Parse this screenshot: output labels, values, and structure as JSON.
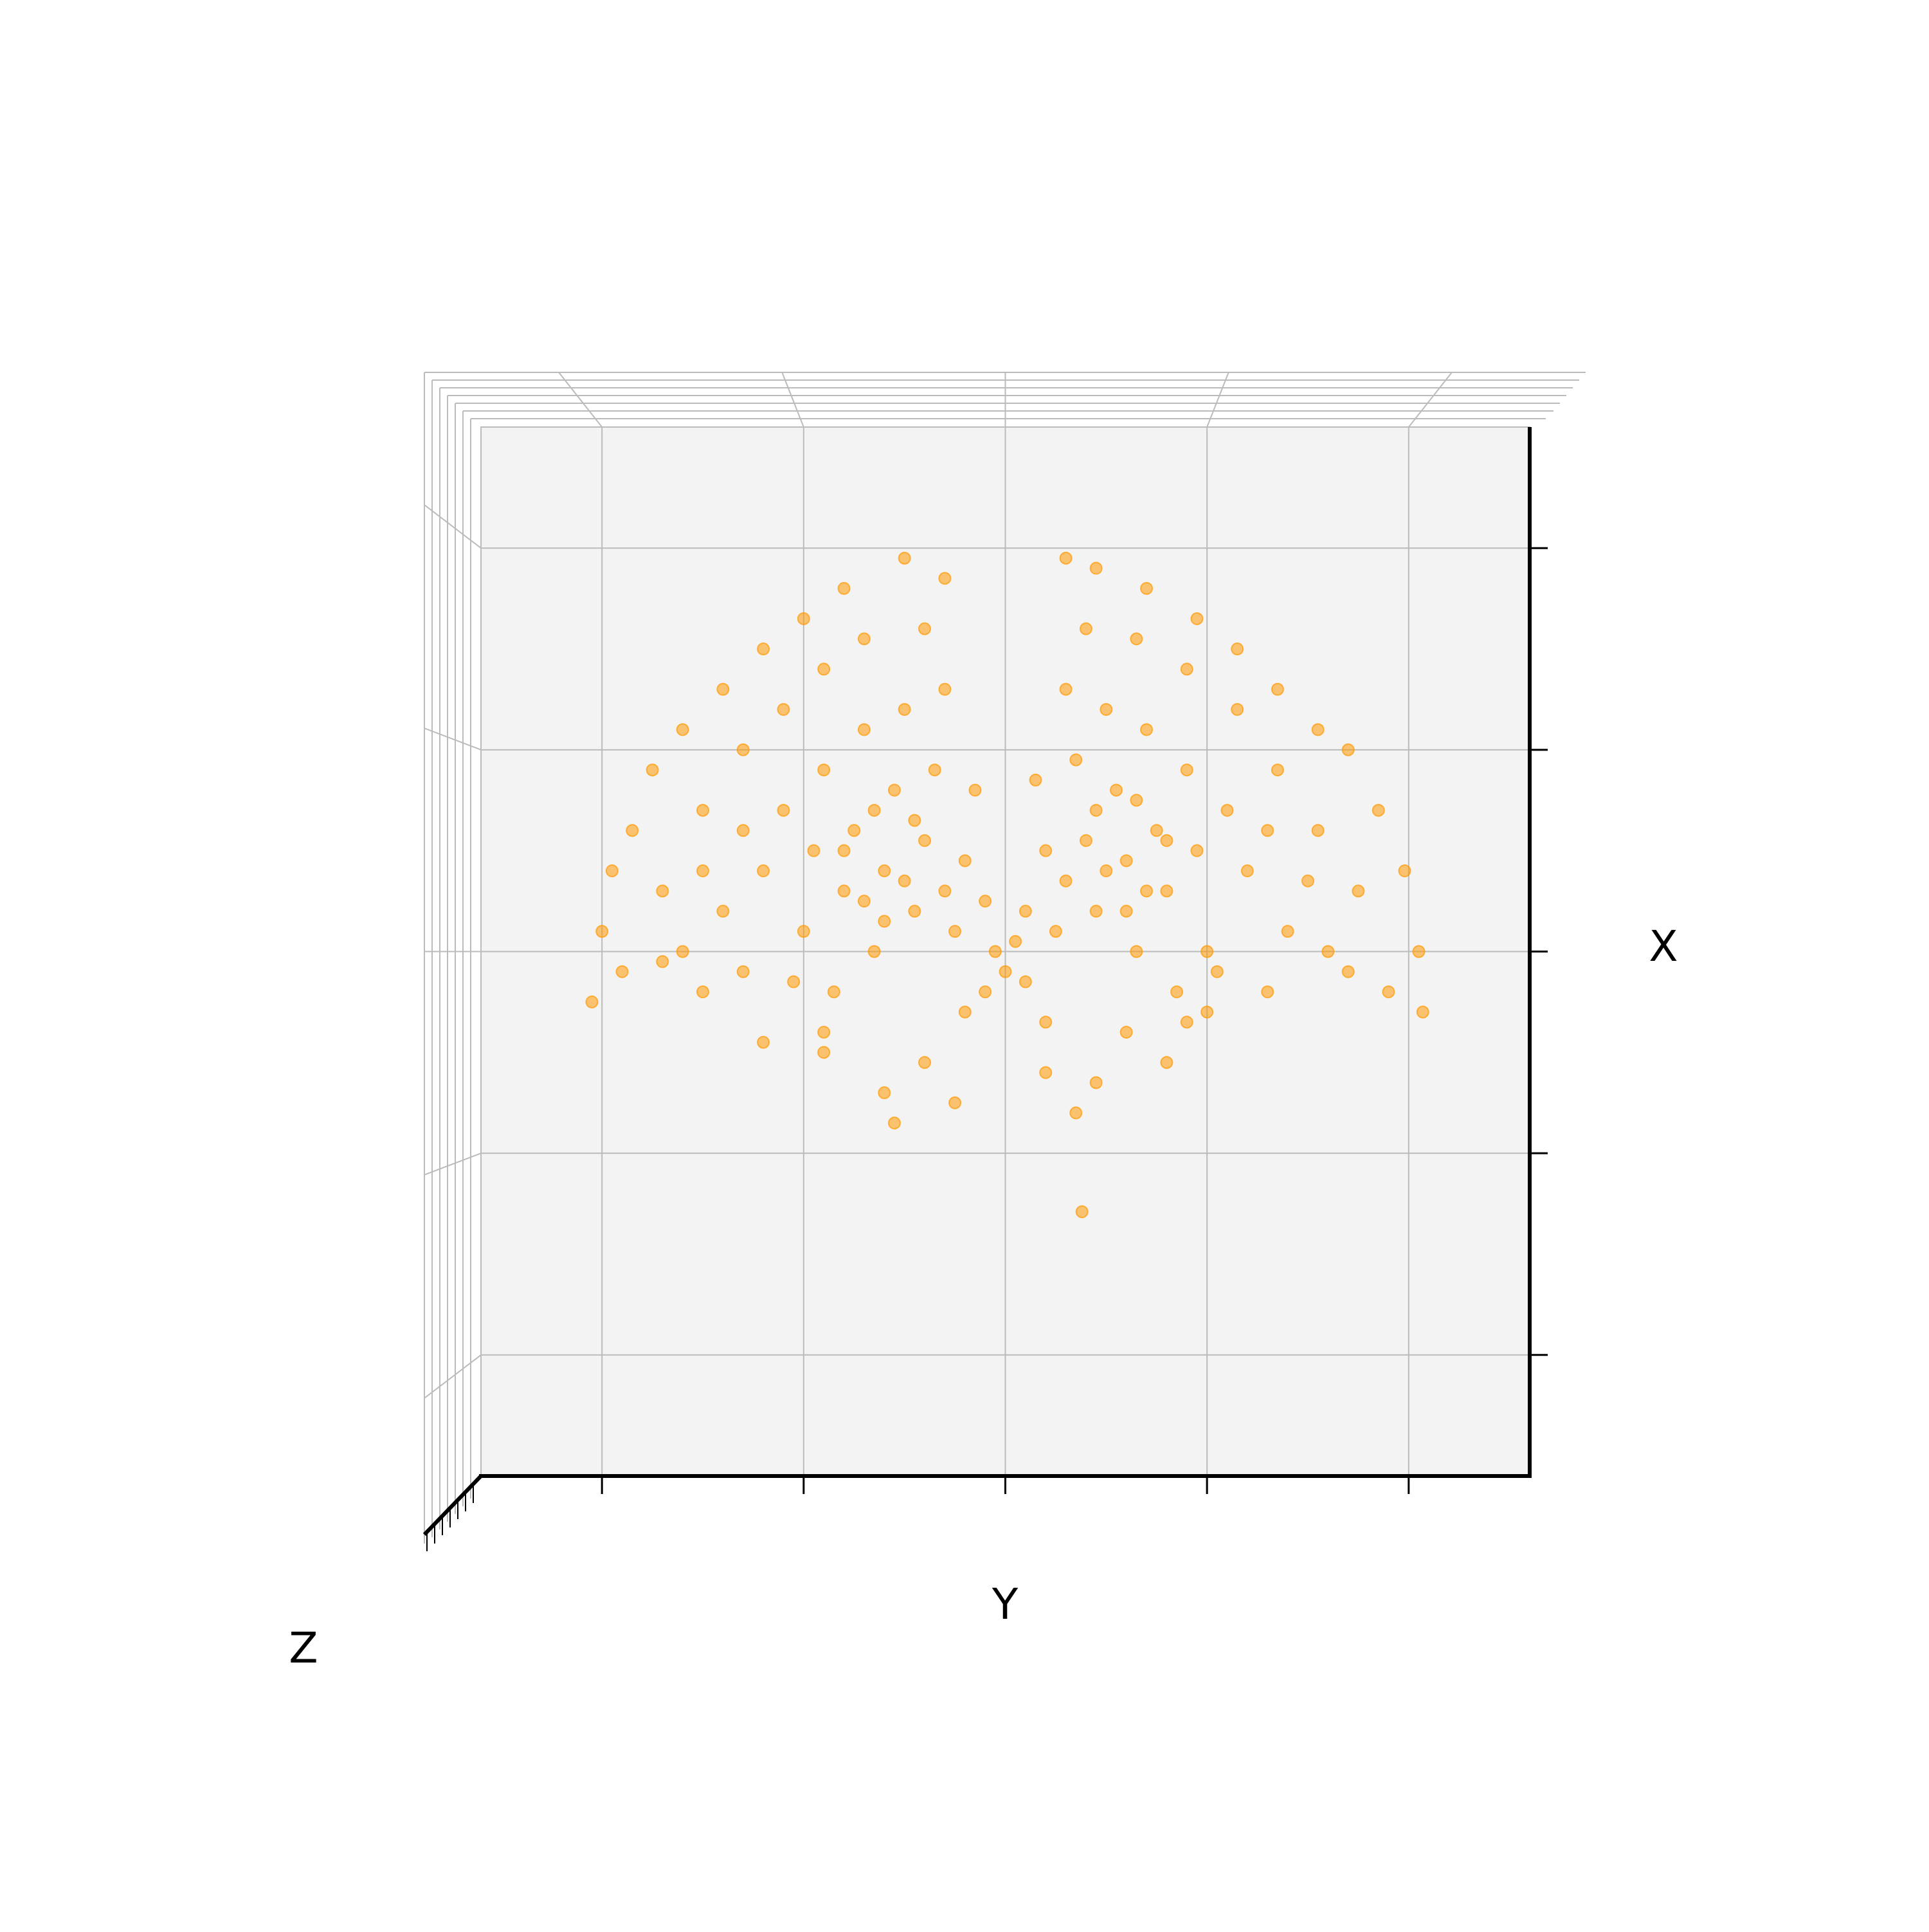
{
  "chart_data": {
    "type": "scatter",
    "xlabel": "Y",
    "ylabel": "X",
    "zlabel": "Z",
    "xlim": [
      -2.6,
      2.6
    ],
    "xticks": [
      -2,
      -1,
      0,
      1,
      2
    ],
    "ylim": [
      -2.6,
      2.6
    ],
    "yticks": [
      -2,
      -1,
      0,
      1,
      2
    ],
    "grid": true,
    "color": "#ff9900",
    "x": [
      -2.05,
      -2.0,
      -1.95,
      -1.85,
      -1.75,
      -1.6,
      -1.4,
      -1.2,
      -1.0,
      -0.8,
      -0.5,
      -0.3,
      -1.9,
      -1.7,
      -1.5,
      -1.3,
      -1.1,
      -0.9,
      -0.7,
      -0.4,
      2.07,
      2.05,
      1.98,
      1.85,
      1.7,
      1.55,
      1.35,
      1.15,
      0.95,
      0.7,
      0.45,
      0.3,
      1.9,
      1.75,
      1.55,
      1.35,
      1.15,
      0.9,
      0.65,
      0.4,
      -1.2,
      -0.9,
      -0.6,
      -0.55,
      -0.25,
      0.2,
      0.35,
      0.45,
      0.8,
      1.0,
      -1.5,
      -0.4,
      0.6,
      0.38,
      -1.6,
      -1.4,
      -1.3,
      -1.2,
      -1.1,
      -1.0,
      -0.95,
      -0.9,
      -0.85,
      -0.8,
      -0.75,
      -0.7,
      -0.65,
      -0.6,
      -0.55,
      -0.5,
      -0.45,
      -0.4,
      -0.35,
      -0.3,
      -0.25,
      -0.2,
      -0.15,
      -0.1,
      -0.05,
      -0.7,
      -0.6,
      -0.5,
      -0.8,
      -0.45,
      -0.3,
      -0.65,
      -1.05,
      -1.3,
      -1.5,
      -1.7,
      -0.2,
      -0.9,
      1.6,
      1.4,
      1.3,
      1.2,
      1.1,
      1.0,
      0.95,
      0.9,
      0.85,
      0.8,
      0.75,
      0.7,
      0.65,
      0.6,
      0.55,
      0.5,
      0.45,
      0.4,
      0.35,
      0.3,
      0.25,
      0.2,
      0.15,
      0.1,
      0.05,
      0.7,
      0.6,
      0.5,
      0.8,
      0.45,
      0.3,
      0.65,
      1.05,
      1.3,
      1.5,
      1.7,
      0.2,
      0.9,
      0,
      0.1,
      -0.1
    ],
    "values": [
      -0.25,
      0.1,
      0.4,
      0.6,
      0.9,
      1.1,
      1.3,
      1.5,
      1.65,
      1.8,
      1.95,
      1.85,
      -0.1,
      0.3,
      0.7,
      1.0,
      1.2,
      1.4,
      1.55,
      1.6,
      -0.3,
      0,
      0.4,
      0.7,
      1.0,
      1.1,
      1.3,
      1.5,
      1.65,
      1.8,
      1.9,
      1.95,
      -0.2,
      0.3,
      0.6,
      0.9,
      1.2,
      1.4,
      1.55,
      1.6,
      -0.45,
      -0.5,
      -0.7,
      -0.85,
      -0.75,
      -0.6,
      -0.8,
      -0.65,
      -0.55,
      -0.3,
      -0.2,
      -0.55,
      -0.4,
      -1.29,
      0,
      0.2,
      -0.1,
      0.4,
      0.7,
      0.1,
      0.5,
      0.9,
      -0.2,
      0.3,
      0.6,
      1.1,
      0,
      0.4,
      0.8,
      1.2,
      0.2,
      0.55,
      0.9,
      1.3,
      0.1,
      0.45,
      0.8,
      -0.2,
      0,
      0.25,
      0.15,
      0.35,
      0.5,
      0.65,
      0.3,
      0.7,
      -0.15,
      0.6,
      0.4,
      -0.05,
      -0.3,
      -0.4,
      0,
      0.1,
      -0.2,
      0.4,
      0.7,
      0,
      0.5,
      0.9,
      -0.2,
      0.3,
      0.6,
      1.1,
      0,
      0.45,
      0.8,
      1.2,
      0.2,
      0.55,
      0.95,
      1.3,
      0.1,
      0.5,
      0.85,
      -0.15,
      0.05,
      0.3,
      0.2,
      0.4,
      0.55,
      0.7,
      0.35,
      0.75,
      -0.1,
      0.6,
      0.35,
      -0.1,
      -0.35,
      -0.35,
      -0.1,
      0.2,
      0.25
    ]
  }
}
